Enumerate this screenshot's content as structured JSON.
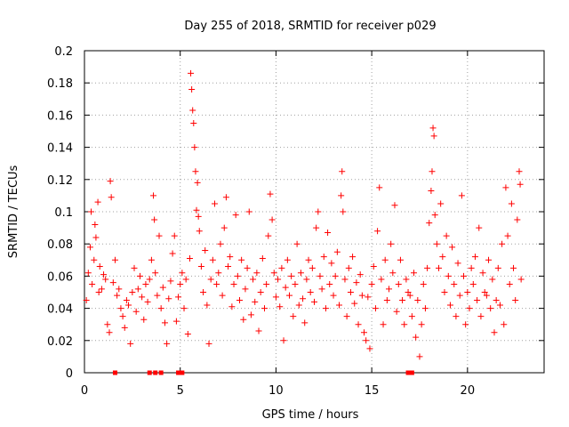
{
  "chart_data": {
    "type": "scatter",
    "title": "Day 255 of 2018, SRMTID for receiver p029",
    "xlabel": "GPS time / hours",
    "ylabel": "SRMTID / TECUs",
    "xlim": [
      0,
      24
    ],
    "ylim": [
      0,
      0.2
    ],
    "x_ticks": [
      0,
      5,
      10,
      15,
      20
    ],
    "x_tick_labels": [
      "0",
      "5",
      "10",
      "15",
      "20"
    ],
    "y_ticks": [
      0,
      0.02,
      0.04,
      0.06,
      0.08,
      0.1,
      0.12,
      0.14,
      0.16,
      0.18,
      0.2
    ],
    "y_tick_labels": [
      "0",
      "0.02",
      "0.04",
      "0.06",
      "0.08",
      "0.1",
      "0.12",
      "0.14",
      "0.16",
      "0.18",
      "0.2"
    ],
    "grid": true,
    "marker": "plus",
    "color": "#ff0000",
    "baseline_markers": [
      1.6,
      3.4,
      3.7,
      4.0,
      4.9,
      5.1,
      16.9,
      17.1
    ],
    "series": [
      {
        "name": "SRMTID",
        "points": [
          [
            0.1,
            0.045
          ],
          [
            0.2,
            0.062
          ],
          [
            0.3,
            0.078
          ],
          [
            0.35,
            0.1
          ],
          [
            0.4,
            0.055
          ],
          [
            0.5,
            0.07
          ],
          [
            0.55,
            0.092
          ],
          [
            0.6,
            0.084
          ],
          [
            0.7,
            0.106
          ],
          [
            0.75,
            0.05
          ],
          [
            0.8,
            0.066
          ],
          [
            0.9,
            0.052
          ],
          [
            1.0,
            0.061
          ],
          [
            1.1,
            0.058
          ],
          [
            1.2,
            0.03
          ],
          [
            1.3,
            0.025
          ],
          [
            1.35,
            0.119
          ],
          [
            1.4,
            0.109
          ],
          [
            1.5,
            0.056
          ],
          [
            1.6,
            0.07
          ],
          [
            1.7,
            0.048
          ],
          [
            1.8,
            0.052
          ],
          [
            1.9,
            0.04
          ],
          [
            2.0,
            0.035
          ],
          [
            2.1,
            0.028
          ],
          [
            2.2,
            0.045
          ],
          [
            2.3,
            0.042
          ],
          [
            2.4,
            0.018
          ],
          [
            2.5,
            0.05
          ],
          [
            2.6,
            0.065
          ],
          [
            2.7,
            0.038
          ],
          [
            2.8,
            0.052
          ],
          [
            2.9,
            0.06
          ],
          [
            3.0,
            0.047
          ],
          [
            3.1,
            0.033
          ],
          [
            3.2,
            0.055
          ],
          [
            3.3,
            0.044
          ],
          [
            3.4,
            0.058
          ],
          [
            3.5,
            0.07
          ],
          [
            3.6,
            0.11
          ],
          [
            3.65,
            0.095
          ],
          [
            3.7,
            0.062
          ],
          [
            3.8,
            0.048
          ],
          [
            3.9,
            0.085
          ],
          [
            4.0,
            0.04
          ],
          [
            4.1,
            0.053
          ],
          [
            4.2,
            0.031
          ],
          [
            4.3,
            0.018
          ],
          [
            4.4,
            0.046
          ],
          [
            4.5,
            0.057
          ],
          [
            4.6,
            0.074
          ],
          [
            4.7,
            0.085
          ],
          [
            4.8,
            0.032
          ],
          [
            4.9,
            0.047
          ],
          [
            5.0,
            0.055
          ],
          [
            5.1,
            0.062
          ],
          [
            5.2,
            0.04
          ],
          [
            5.3,
            0.058
          ],
          [
            5.4,
            0.024
          ],
          [
            5.5,
            0.071
          ],
          [
            5.55,
            0.186
          ],
          [
            5.6,
            0.176
          ],
          [
            5.65,
            0.163
          ],
          [
            5.7,
            0.155
          ],
          [
            5.75,
            0.14
          ],
          [
            5.8,
            0.125
          ],
          [
            5.85,
            0.101
          ],
          [
            5.9,
            0.118
          ],
          [
            5.95,
            0.097
          ],
          [
            6.0,
            0.088
          ],
          [
            6.1,
            0.066
          ],
          [
            6.2,
            0.05
          ],
          [
            6.3,
            0.076
          ],
          [
            6.4,
            0.042
          ],
          [
            6.5,
            0.018
          ],
          [
            6.6,
            0.058
          ],
          [
            6.7,
            0.07
          ],
          [
            6.8,
            0.105
          ],
          [
            6.9,
            0.055
          ],
          [
            7.0,
            0.062
          ],
          [
            7.1,
            0.08
          ],
          [
            7.2,
            0.048
          ],
          [
            7.3,
            0.09
          ],
          [
            7.4,
            0.109
          ],
          [
            7.5,
            0.066
          ],
          [
            7.6,
            0.072
          ],
          [
            7.7,
            0.041
          ],
          [
            7.8,
            0.055
          ],
          [
            7.9,
            0.098
          ],
          [
            8.0,
            0.06
          ],
          [
            8.1,
            0.045
          ],
          [
            8.2,
            0.07
          ],
          [
            8.3,
            0.033
          ],
          [
            8.4,
            0.052
          ],
          [
            8.5,
            0.065
          ],
          [
            8.6,
            0.1
          ],
          [
            8.7,
            0.036
          ],
          [
            8.8,
            0.058
          ],
          [
            8.9,
            0.044
          ],
          [
            9.0,
            0.062
          ],
          [
            9.1,
            0.026
          ],
          [
            9.2,
            0.05
          ],
          [
            9.3,
            0.071
          ],
          [
            9.4,
            0.04
          ],
          [
            9.5,
            0.055
          ],
          [
            9.6,
            0.085
          ],
          [
            9.7,
            0.111
          ],
          [
            9.8,
            0.095
          ],
          [
            9.9,
            0.062
          ],
          [
            10.0,
            0.047
          ],
          [
            10.1,
            0.058
          ],
          [
            10.2,
            0.041
          ],
          [
            10.3,
            0.065
          ],
          [
            10.4,
            0.02
          ],
          [
            10.5,
            0.053
          ],
          [
            10.6,
            0.07
          ],
          [
            10.7,
            0.048
          ],
          [
            10.8,
            0.06
          ],
          [
            10.9,
            0.035
          ],
          [
            11.0,
            0.055
          ],
          [
            11.1,
            0.08
          ],
          [
            11.2,
            0.042
          ],
          [
            11.3,
            0.062
          ],
          [
            11.4,
            0.046
          ],
          [
            11.5,
            0.031
          ],
          [
            11.6,
            0.058
          ],
          [
            11.7,
            0.07
          ],
          [
            11.8,
            0.05
          ],
          [
            11.9,
            0.065
          ],
          [
            12.0,
            0.044
          ],
          [
            12.1,
            0.09
          ],
          [
            12.2,
            0.1
          ],
          [
            12.3,
            0.06
          ],
          [
            12.4,
            0.052
          ],
          [
            12.5,
            0.072
          ],
          [
            12.6,
            0.04
          ],
          [
            12.7,
            0.087
          ],
          [
            12.8,
            0.055
          ],
          [
            12.9,
            0.068
          ],
          [
            13.0,
            0.048
          ],
          [
            13.1,
            0.06
          ],
          [
            13.2,
            0.075
          ],
          [
            13.3,
            0.042
          ],
          [
            13.4,
            0.11
          ],
          [
            13.45,
            0.125
          ],
          [
            13.5,
            0.1
          ],
          [
            13.6,
            0.058
          ],
          [
            13.7,
            0.035
          ],
          [
            13.8,
            0.065
          ],
          [
            13.9,
            0.05
          ],
          [
            14.0,
            0.072
          ],
          [
            14.1,
            0.043
          ],
          [
            14.2,
            0.056
          ],
          [
            14.3,
            0.03
          ],
          [
            14.4,
            0.061
          ],
          [
            14.5,
            0.048
          ],
          [
            14.6,
            0.025
          ],
          [
            14.7,
            0.02
          ],
          [
            14.8,
            0.047
          ],
          [
            14.9,
            0.015
          ],
          [
            15.0,
            0.055
          ],
          [
            15.1,
            0.066
          ],
          [
            15.2,
            0.04
          ],
          [
            15.3,
            0.088
          ],
          [
            15.4,
            0.115
          ],
          [
            15.5,
            0.058
          ],
          [
            15.6,
            0.03
          ],
          [
            15.7,
            0.07
          ],
          [
            15.8,
            0.045
          ],
          [
            15.9,
            0.052
          ],
          [
            16.0,
            0.08
          ],
          [
            16.1,
            0.062
          ],
          [
            16.2,
            0.104
          ],
          [
            16.3,
            0.038
          ],
          [
            16.4,
            0.055
          ],
          [
            16.5,
            0.07
          ],
          [
            16.6,
            0.045
          ],
          [
            16.7,
            0.03
          ],
          [
            16.8,
            0.058
          ],
          [
            16.9,
            0.05
          ],
          [
            17.0,
            0.048
          ],
          [
            17.1,
            0.035
          ],
          [
            17.2,
            0.062
          ],
          [
            17.3,
            0.022
          ],
          [
            17.4,
            0.045
          ],
          [
            17.5,
            0.01
          ],
          [
            17.6,
            0.03
          ],
          [
            17.7,
            0.055
          ],
          [
            17.8,
            0.04
          ],
          [
            17.9,
            0.065
          ],
          [
            18.0,
            0.093
          ],
          [
            18.1,
            0.113
          ],
          [
            18.15,
            0.125
          ],
          [
            18.2,
            0.152
          ],
          [
            18.25,
            0.147
          ],
          [
            18.3,
            0.098
          ],
          [
            18.4,
            0.08
          ],
          [
            18.5,
            0.065
          ],
          [
            18.6,
            0.105
          ],
          [
            18.7,
            0.072
          ],
          [
            18.8,
            0.05
          ],
          [
            18.9,
            0.085
          ],
          [
            19.0,
            0.06
          ],
          [
            19.1,
            0.042
          ],
          [
            19.2,
            0.078
          ],
          [
            19.3,
            0.055
          ],
          [
            19.4,
            0.035
          ],
          [
            19.5,
            0.068
          ],
          [
            19.6,
            0.048
          ],
          [
            19.7,
            0.11
          ],
          [
            19.8,
            0.06
          ],
          [
            19.9,
            0.03
          ],
          [
            20.0,
            0.05
          ],
          [
            20.1,
            0.04
          ],
          [
            20.2,
            0.065
          ],
          [
            20.3,
            0.055
          ],
          [
            20.4,
            0.072
          ],
          [
            20.5,
            0.045
          ],
          [
            20.6,
            0.09
          ],
          [
            20.7,
            0.035
          ],
          [
            20.8,
            0.062
          ],
          [
            20.9,
            0.05
          ],
          [
            21.0,
            0.048
          ],
          [
            21.1,
            0.07
          ],
          [
            21.2,
            0.04
          ],
          [
            21.3,
            0.058
          ],
          [
            21.4,
            0.025
          ],
          [
            21.5,
            0.045
          ],
          [
            21.6,
            0.065
          ],
          [
            21.7,
            0.042
          ],
          [
            21.8,
            0.08
          ],
          [
            21.9,
            0.03
          ],
          [
            22.0,
            0.115
          ],
          [
            22.1,
            0.085
          ],
          [
            22.2,
            0.055
          ],
          [
            22.3,
            0.105
          ],
          [
            22.4,
            0.065
          ],
          [
            22.5,
            0.045
          ],
          [
            22.6,
            0.095
          ],
          [
            22.7,
            0.125
          ],
          [
            22.75,
            0.117
          ],
          [
            22.8,
            0.058
          ]
        ]
      }
    ]
  }
}
